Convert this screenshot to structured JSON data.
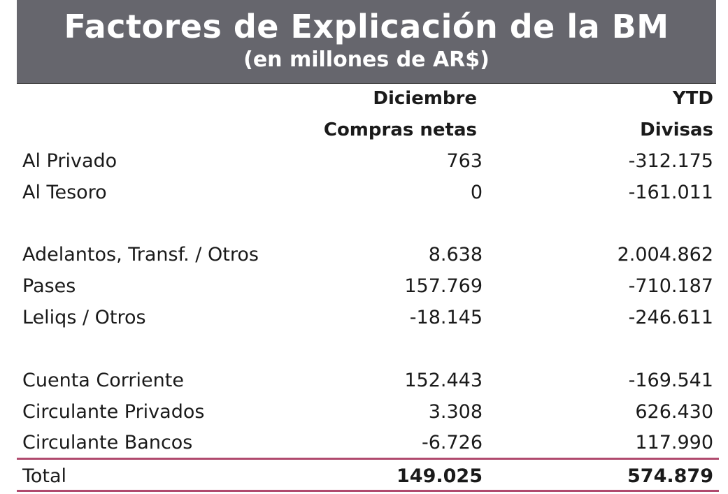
{
  "header": {
    "title": "Factores de Explicación de la BM",
    "subtitle": "(en millones de AR$)"
  },
  "columns": {
    "c1_line1": "Diciembre",
    "c1_line2": "Compras netas",
    "c2_line1": "YTD",
    "c2_line2": "Divisas"
  },
  "rows": [
    {
      "label": "Al Privado",
      "c1": "763",
      "c2": "-312.175"
    },
    {
      "label": "Al Tesoro",
      "c1": "0",
      "c2": "-161.011"
    },
    {
      "label": "Adelantos, Transf. / Otros",
      "c1": "8.638",
      "c2": "2.004.862"
    },
    {
      "label": "Pases",
      "c1": "157.769",
      "c2": "-710.187"
    },
    {
      "label": "Leliqs / Otros",
      "c1": "-18.145",
      "c2": "-246.611"
    },
    {
      "label": "Cuenta Corriente",
      "c1": "152.443",
      "c2": "-169.541"
    },
    {
      "label": "Circulante Privados",
      "c1": "3.308",
      "c2": "626.430"
    },
    {
      "label": "Circulante Bancos",
      "c1": "-6.726",
      "c2": "117.990"
    }
  ],
  "total": {
    "label": "Total",
    "c1": "149.025",
    "c2": "574.879"
  },
  "colors": {
    "header_bg": "#66666d",
    "rule": "#b04a6e"
  }
}
